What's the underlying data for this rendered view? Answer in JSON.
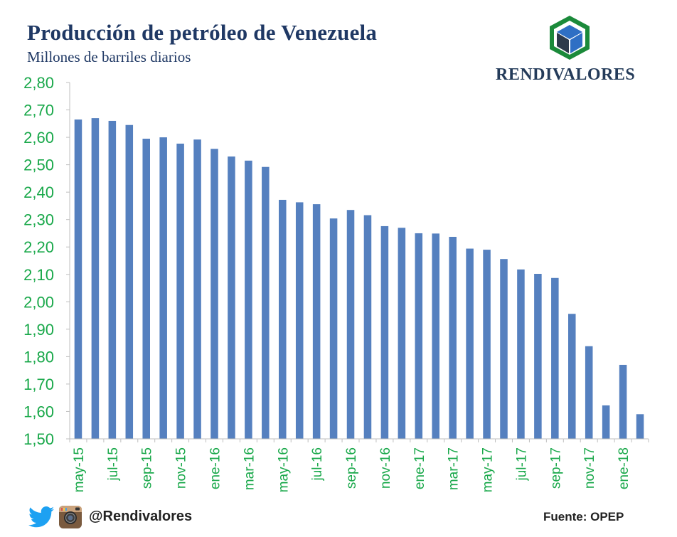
{
  "header": {
    "title": "Producción de petróleo de Venezuela",
    "subtitle": "Millones de barriles diarios",
    "brand": "RENDIVALORES"
  },
  "footer": {
    "handle": "@Rendivalores",
    "source": "Fuente: OPEP",
    "icons": [
      "twitter-icon",
      "instagram-icon"
    ]
  },
  "colors": {
    "bar": "#5580bf",
    "title": "#1f3864",
    "ticks": "#19a84a",
    "logo_green": "#1b8a3a",
    "logo_blue": "#2f6fc4",
    "logo_dark": "#2d3a4b"
  },
  "chart_data": {
    "type": "bar",
    "title": "Producción de petróleo de Venezuela",
    "subtitle": "Millones de barriles diarios",
    "xlabel": "",
    "ylabel": "",
    "ylim": [
      1.5,
      2.8
    ],
    "ytick_step": 0.1,
    "yticks": [
      "1,50",
      "1,60",
      "1,70",
      "1,80",
      "1,90",
      "2,00",
      "2,10",
      "2,20",
      "2,30",
      "2,40",
      "2,50",
      "2,60",
      "2,70",
      "2,80"
    ],
    "categories": [
      "may-15",
      "jun-15",
      "jul-15",
      "ago-15",
      "sep-15",
      "oct-15",
      "nov-15",
      "dic-15",
      "ene-16",
      "feb-16",
      "mar-16",
      "abr-16",
      "may-16",
      "jun-16",
      "jul-16",
      "ago-16",
      "sep-16",
      "oct-16",
      "nov-16",
      "dic-16",
      "ene-17",
      "feb-17",
      "mar-17",
      "abr-17",
      "may-17",
      "jun-17",
      "jul-17",
      "ago-17",
      "sep-17",
      "oct-17",
      "nov-17",
      "dic-17",
      "ene-18",
      "feb-18"
    ],
    "visible_tick_labels": [
      "may-15",
      "jul-15",
      "sep-15",
      "nov-15",
      "ene-16",
      "mar-16",
      "may-16",
      "jul-16",
      "sep-16",
      "nov-16",
      "ene-17",
      "mar-17",
      "may-17",
      "jul-17",
      "sep-17",
      "nov-17",
      "ene-18"
    ],
    "values": [
      2.665,
      2.67,
      2.66,
      2.645,
      2.595,
      2.6,
      2.577,
      2.592,
      2.558,
      2.53,
      2.515,
      2.492,
      2.372,
      2.363,
      2.356,
      2.304,
      2.335,
      2.316,
      2.276,
      2.27,
      2.25,
      2.249,
      2.237,
      2.194,
      2.19,
      2.156,
      2.118,
      2.102,
      2.087,
      1.956,
      1.838,
      1.622,
      1.77,
      1.59
    ],
    "grid": false,
    "legend": "none"
  }
}
